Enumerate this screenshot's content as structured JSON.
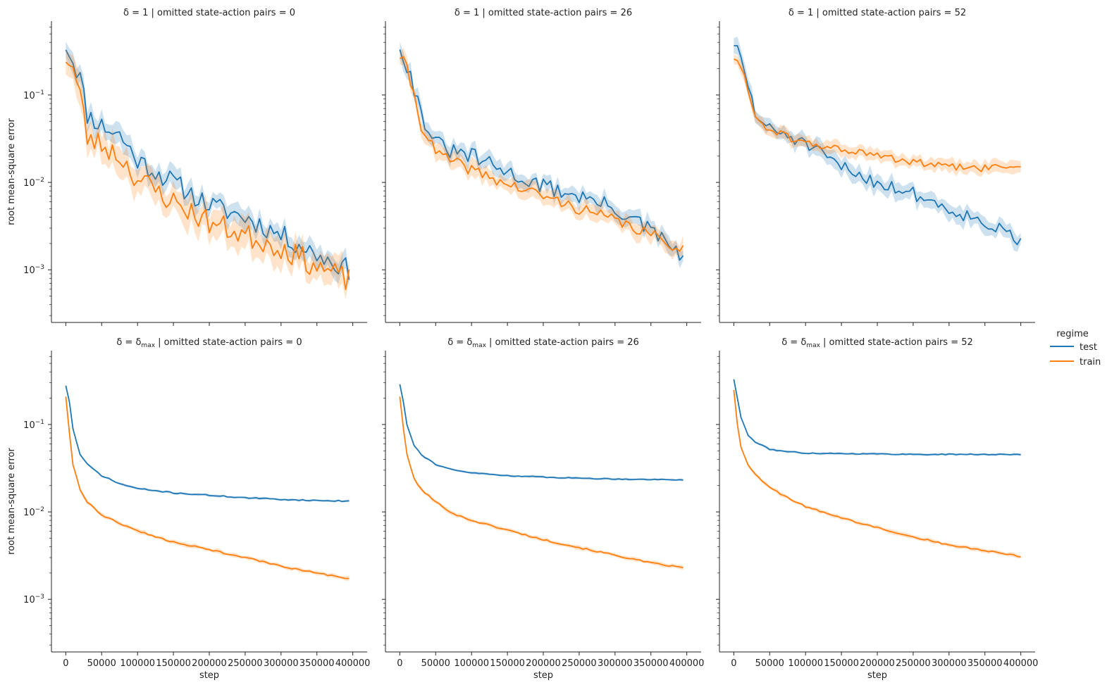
{
  "chart_data": {
    "type": "line",
    "layout": "facet-grid 2x3",
    "xlabel": "step",
    "ylabel": "root mean-square error",
    "yscale": "log",
    "ylim": [
      0.00025,
      0.7
    ],
    "xlim": [
      -20000,
      420000
    ],
    "x_ticks": [
      0,
      50000,
      100000,
      150000,
      200000,
      250000,
      300000,
      350000,
      400000
    ],
    "x_tick_labels": [
      "0",
      "50000",
      "100000",
      "150000",
      "200000",
      "250000",
      "300000",
      "350000",
      "400000"
    ],
    "y_ticks": [
      0.001,
      0.01,
      0.1
    ],
    "y_tick_labels": [
      "10",
      "10",
      "10"
    ],
    "y_tick_exponents": [
      "−3",
      "−2",
      "−1"
    ],
    "grid": false,
    "legend": {
      "title": "regime",
      "placement": "right",
      "entries": [
        {
          "name": "test",
          "color": "#1f77b4"
        },
        {
          "name": "train",
          "color": "#ff7f0e"
        }
      ]
    },
    "panels": [
      {
        "title": {
          "delta": "δ = 1",
          "rest": " | omitted state-action pairs = 0"
        },
        "delta_sub": "",
        "series": [
          {
            "name": "test",
            "color": "#1f77b4",
            "band": 0.25,
            "noise": 0.28,
            "seed": 11,
            "x": [
              0,
              10000,
              20000,
              30000,
              50000,
              75000,
              100000,
              150000,
              200000,
              250000,
              300000,
              350000,
              395000
            ],
            "y": [
              0.38,
              0.25,
              0.16,
              0.06,
              0.045,
              0.035,
              0.018,
              0.01,
              0.0055,
              0.004,
              0.0025,
              0.0015,
              0.001
            ]
          },
          {
            "name": "train",
            "color": "#ff7f0e",
            "band": 0.35,
            "noise": 0.32,
            "seed": 23,
            "x": [
              0,
              10000,
              20000,
              30000,
              50000,
              75000,
              100000,
              150000,
              200000,
              250000,
              300000,
              350000,
              395000
            ],
            "y": [
              0.28,
              0.2,
              0.1,
              0.032,
              0.027,
              0.02,
              0.011,
              0.006,
              0.0035,
              0.0025,
              0.0018,
              0.0011,
              0.00075
            ]
          }
        ]
      },
      {
        "title": {
          "delta": "δ = 1",
          "rest": " | omitted state-action pairs = 26"
        },
        "delta_sub": "",
        "series": [
          {
            "name": "test",
            "color": "#1f77b4",
            "band": 0.2,
            "noise": 0.22,
            "seed": 31,
            "x": [
              0,
              10000,
              20000,
              30000,
              50000,
              75000,
              100000,
              150000,
              200000,
              250000,
              300000,
              350000,
              395000
            ],
            "y": [
              0.37,
              0.22,
              0.12,
              0.06,
              0.028,
              0.022,
              0.02,
              0.013,
              0.009,
              0.007,
              0.005,
              0.0028,
              0.0014
            ]
          },
          {
            "name": "train",
            "color": "#ff7f0e",
            "band": 0.2,
            "noise": 0.15,
            "seed": 41,
            "x": [
              0,
              10000,
              20000,
              30000,
              50000,
              75000,
              100000,
              150000,
              200000,
              250000,
              300000,
              350000,
              395000
            ],
            "y": [
              0.28,
              0.2,
              0.1,
              0.045,
              0.022,
              0.017,
              0.014,
              0.0095,
              0.007,
              0.005,
              0.0037,
              0.0025,
              0.0017
            ]
          }
        ]
      },
      {
        "title": {
          "delta": "δ = 1",
          "rest": " | omitted state-action pairs = 52"
        },
        "delta_sub": "",
        "series": [
          {
            "name": "test",
            "color": "#1f77b4",
            "band": 0.2,
            "noise": 0.18,
            "seed": 51,
            "x": [
              0,
              10000,
              20000,
              30000,
              50000,
              75000,
              100000,
              150000,
              200000,
              250000,
              300000,
              350000,
              400000
            ],
            "y": [
              0.4,
              0.25,
              0.13,
              0.06,
              0.04,
              0.035,
              0.027,
              0.015,
              0.01,
              0.0075,
              0.005,
              0.0035,
              0.0021
            ]
          },
          {
            "name": "train",
            "color": "#ff7f0e",
            "band": 0.15,
            "noise": 0.1,
            "seed": 61,
            "x": [
              0,
              10000,
              20000,
              30000,
              50000,
              75000,
              100000,
              150000,
              200000,
              250000,
              300000,
              350000,
              400000
            ],
            "y": [
              0.27,
              0.2,
              0.12,
              0.055,
              0.04,
              0.033,
              0.028,
              0.024,
              0.02,
              0.017,
              0.015,
              0.0145,
              0.0155
            ]
          }
        ]
      },
      {
        "title": {
          "delta": "δ = δ",
          "rest": " | omitted state-action pairs = 0"
        },
        "delta_sub": "max",
        "series": [
          {
            "name": "test",
            "color": "#1f77b4",
            "band": 0.03,
            "noise": 0.015,
            "seed": 71,
            "x": [
              0,
              5000,
              10000,
              20000,
              30000,
              50000,
              75000,
              100000,
              150000,
              200000,
              250000,
              300000,
              350000,
              395000
            ],
            "y": [
              0.28,
              0.18,
              0.09,
              0.045,
              0.035,
              0.026,
              0.021,
              0.0185,
              0.0165,
              0.0155,
              0.0145,
              0.0139,
              0.0135,
              0.0133
            ]
          },
          {
            "name": "train",
            "color": "#ff7f0e",
            "band": 0.05,
            "noise": 0.02,
            "seed": 81,
            "x": [
              0,
              5000,
              10000,
              20000,
              30000,
              50000,
              75000,
              100000,
              150000,
              200000,
              250000,
              300000,
              350000,
              395000
            ],
            "y": [
              0.21,
              0.08,
              0.035,
              0.018,
              0.013,
              0.0092,
              0.0074,
              0.0061,
              0.0045,
              0.0037,
              0.003,
              0.0024,
              0.002,
              0.0017
            ]
          }
        ]
      },
      {
        "title": {
          "delta": "δ = δ",
          "rest": " | omitted state-action pairs = 26"
        },
        "delta_sub": "max",
        "series": [
          {
            "name": "test",
            "color": "#1f77b4",
            "band": 0.03,
            "noise": 0.012,
            "seed": 91,
            "x": [
              0,
              5000,
              10000,
              20000,
              30000,
              50000,
              75000,
              100000,
              150000,
              200000,
              250000,
              300000,
              350000,
              395000
            ],
            "y": [
              0.29,
              0.18,
              0.1,
              0.058,
              0.045,
              0.035,
              0.03,
              0.028,
              0.026,
              0.025,
              0.0243,
              0.0238,
              0.0235,
              0.0233
            ]
          },
          {
            "name": "train",
            "color": "#ff7f0e",
            "band": 0.05,
            "noise": 0.02,
            "seed": 101,
            "x": [
              0,
              5000,
              10000,
              20000,
              30000,
              50000,
              75000,
              100000,
              150000,
              200000,
              250000,
              300000,
              350000,
              395000
            ],
            "y": [
              0.21,
              0.09,
              0.045,
              0.024,
              0.018,
              0.013,
              0.0095,
              0.008,
              0.0062,
              0.0048,
              0.0039,
              0.0032,
              0.0026,
              0.0023
            ]
          }
        ]
      },
      {
        "title": {
          "delta": "δ = δ",
          "rest": " | omitted state-action pairs = 52"
        },
        "delta_sub": "max",
        "series": [
          {
            "name": "test",
            "color": "#1f77b4",
            "band": 0.03,
            "noise": 0.012,
            "seed": 111,
            "x": [
              0,
              5000,
              10000,
              20000,
              30000,
              50000,
              75000,
              100000,
              150000,
              200000,
              250000,
              300000,
              350000,
              400000
            ],
            "y": [
              0.33,
              0.2,
              0.12,
              0.075,
              0.063,
              0.052,
              0.049,
              0.047,
              0.0465,
              0.046,
              0.0455,
              0.0455,
              0.0455,
              0.0452
            ]
          },
          {
            "name": "train",
            "color": "#ff7f0e",
            "band": 0.05,
            "noise": 0.02,
            "seed": 121,
            "x": [
              0,
              5000,
              10000,
              20000,
              30000,
              50000,
              75000,
              100000,
              150000,
              200000,
              250000,
              300000,
              350000,
              400000
            ],
            "y": [
              0.25,
              0.1,
              0.055,
              0.035,
              0.027,
              0.019,
              0.0145,
              0.0115,
              0.0085,
              0.0066,
              0.0052,
              0.0042,
              0.0036,
              0.0031
            ]
          }
        ]
      }
    ]
  }
}
